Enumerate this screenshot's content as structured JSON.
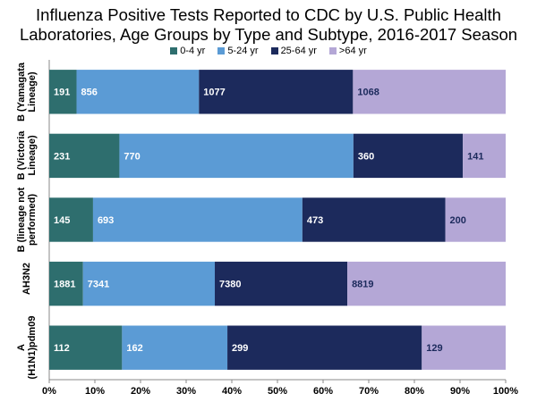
{
  "chart_data": {
    "type": "bar",
    "orientation": "horizontal",
    "stacking": "percent",
    "title": "Influenza Positive Tests Reported to CDC by U.S. Public Health Laboratories, Age Groups by Type and Subtype, 2016-2017 Season",
    "categories": [
      "B (Yamagata Lineage)",
      "B (Victoria Lineage)",
      "B (lineage not performed)",
      "AH3N2",
      "A (H1N1)pdm09"
    ],
    "series": [
      {
        "name": "0-4 yr",
        "color": "#2e6e6e",
        "label_color": "#ffffff",
        "values": [
          191,
          231,
          145,
          1881,
          112
        ]
      },
      {
        "name": "5-24 yr",
        "color": "#5b9bd5",
        "label_color": "#ffffff",
        "values": [
          856,
          770,
          693,
          7341,
          162
        ]
      },
      {
        "name": "25-64 yr",
        "color": "#1c2a5c",
        "label_color": "#ffffff",
        "values": [
          1077,
          360,
          473,
          7380,
          299
        ]
      },
      {
        "name": ">64 yr",
        "color": "#b4a7d6",
        "label_color": "#1c2a5c",
        "values": [
          1068,
          141,
          200,
          8819,
          129
        ]
      }
    ],
    "xlim": [
      0,
      100
    ],
    "xticks": [
      {
        "value": 0,
        "label": "0%"
      },
      {
        "value": 10,
        "label": "10%"
      },
      {
        "value": 20,
        "label": "20%"
      },
      {
        "value": 30,
        "label": "30%"
      },
      {
        "value": 40,
        "label": "40%"
      },
      {
        "value": 50,
        "label": "50%"
      },
      {
        "value": 60,
        "label": "60%"
      },
      {
        "value": 70,
        "label": "70%"
      },
      {
        "value": 80,
        "label": "80%"
      },
      {
        "value": 90,
        "label": "90%"
      },
      {
        "value": 100,
        "label": "100%"
      }
    ],
    "grid": false,
    "legend": "top"
  }
}
